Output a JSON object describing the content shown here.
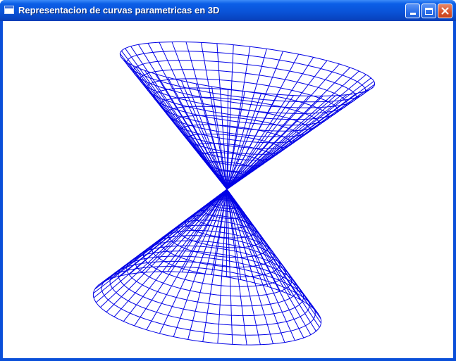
{
  "window": {
    "title": "Representacion de curvas parametricas en 3D",
    "icon": "app-window-icon"
  },
  "caption_buttons": {
    "minimize_icon": "minimize-icon",
    "maximize_icon": "maximize-icon",
    "close_icon": "close-icon"
  },
  "colors": {
    "titlebar": "#0a53d8",
    "frame": "#0a4fd9",
    "canvas_background": "#ffffff",
    "wireframe": "#0000e6",
    "close_button": "#d9552f"
  },
  "plot": {
    "surface": "double cone wireframe",
    "meridians": 48,
    "parallels": 16
  }
}
